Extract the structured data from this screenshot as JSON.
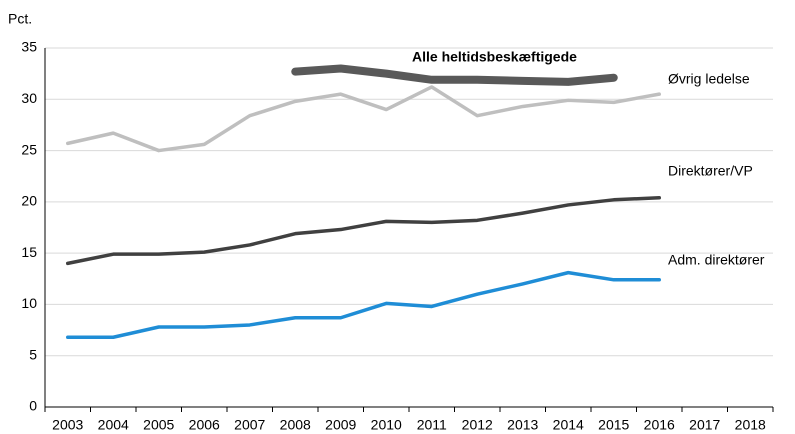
{
  "chart_data": {
    "type": "line",
    "y_label": "Pct.",
    "categories": [
      2003,
      2004,
      2005,
      2006,
      2007,
      2008,
      2009,
      2010,
      2011,
      2012,
      2013,
      2014,
      2015,
      2016,
      2017,
      2018
    ],
    "series": [
      {
        "name": "Alle heltidsbeskæftigede",
        "color": "#595959",
        "values": [
          null,
          null,
          null,
          null,
          null,
          32.7,
          33.0,
          32.5,
          31.9,
          31.9,
          31.8,
          31.7,
          32.1,
          null,
          null,
          null
        ]
      },
      {
        "name": "Øvrig ledelse",
        "color": "#bfbfbf",
        "values": [
          25.7,
          26.7,
          25.0,
          25.6,
          28.4,
          29.8,
          30.5,
          29.0,
          31.2,
          28.4,
          29.3,
          29.9,
          29.7,
          30.5,
          null,
          null
        ]
      },
      {
        "name": "Direktører/VP",
        "color": "#404040",
        "values": [
          14.0,
          14.9,
          14.9,
          15.1,
          15.8,
          16.9,
          17.3,
          18.1,
          18.0,
          18.2,
          18.9,
          19.7,
          20.2,
          20.4,
          null,
          null
        ]
      },
      {
        "name": "Adm. direktører",
        "color": "#1f8dd6",
        "values": [
          6.8,
          6.8,
          7.8,
          7.8,
          8.0,
          8.7,
          8.7,
          10.1,
          9.8,
          11.0,
          12.0,
          13.1,
          12.4,
          12.4,
          null,
          null
        ]
      }
    ],
    "ylim": [
      0,
      35
    ],
    "yticks": [
      0,
      5,
      10,
      15,
      20,
      25,
      30,
      35
    ],
    "grid": true
  }
}
